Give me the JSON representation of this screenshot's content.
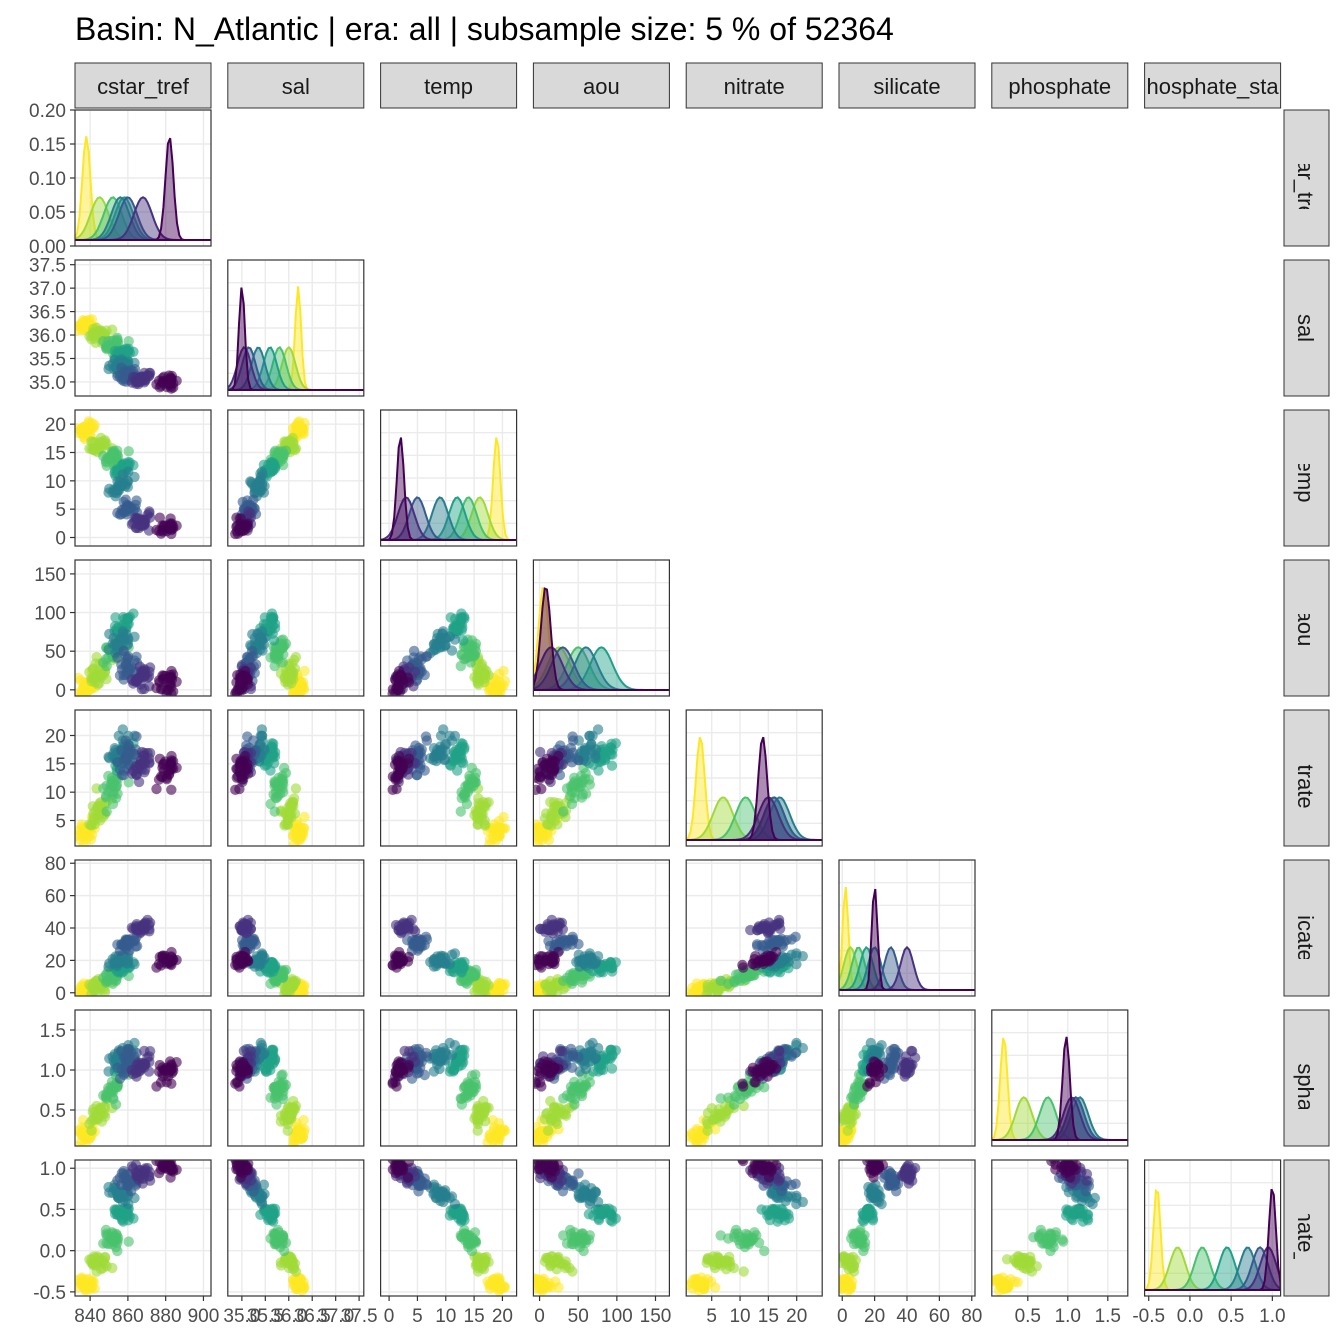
{
  "chart_data": {
    "type": "scatter",
    "title": "Basin: N_Atlantic | era: all | subsample size: 5 % of 52364",
    "variables": [
      "cstar_tref",
      "sal",
      "temp",
      "aou",
      "nitrate",
      "silicate",
      "phosphate",
      "phosphate_star"
    ],
    "strip_labels": [
      "cstar_tref",
      "sal",
      "temp",
      "aou",
      "nitrate",
      "silicate",
      "phosphate",
      "hosphate_sta"
    ],
    "row_strip_labels": [
      "cstar_tref",
      "sal",
      "temp",
      "aou",
      "nitrate",
      "silicate",
      "phosphate",
      "hosphate_sta"
    ],
    "palette": [
      "#fde725",
      "#a0da39",
      "#4ac16d",
      "#1fa187",
      "#277f8e",
      "#365c8d",
      "#46327e",
      "#440154"
    ],
    "axis_ranges": [
      [
        832,
        904
      ],
      [
        34.7,
        37.6
      ],
      [
        -1.5,
        22.5
      ],
      [
        -8,
        168
      ],
      [
        0.5,
        24.5
      ],
      [
        -2,
        82
      ],
      [
        0.05,
        1.75
      ],
      [
        -0.55,
        1.1
      ]
    ],
    "density_ylim": [
      0,
      0.2
    ],
    "x_tick_labels": [
      [
        "840",
        "860",
        "880",
        "900"
      ],
      [
        "35.0",
        "35.5",
        "36.0",
        "36.5",
        "37.0",
        "37.5"
      ],
      [
        "0",
        "5",
        "10",
        "15",
        "20"
      ],
      [
        "0",
        "50",
        "100",
        "150"
      ],
      [
        "5",
        "10",
        "15",
        "20"
      ],
      [
        "0",
        "20",
        "40",
        "60",
        "80"
      ],
      [
        "0.5",
        "1.0",
        "1.5"
      ],
      [
        "-0.5",
        "0.0",
        "0.5",
        "1.0"
      ]
    ],
    "x_tick_values": [
      [
        840,
        860,
        880,
        900
      ],
      [
        35.0,
        35.5,
        36.0,
        36.5,
        37.0,
        37.5
      ],
      [
        0,
        5,
        10,
        15,
        20
      ],
      [
        0,
        50,
        100,
        150
      ],
      [
        5,
        10,
        15,
        20
      ],
      [
        0,
        20,
        40,
        60,
        80
      ],
      [
        0.5,
        1.0,
        1.5
      ],
      [
        -0.5,
        0.0,
        0.5,
        1.0
      ]
    ],
    "y_tick_labels": [
      [
        "0.00",
        "0.05",
        "0.10",
        "0.15",
        "0.20"
      ],
      [
        "35.0",
        "35.5",
        "36.0",
        "36.5",
        "37.0",
        "37.5"
      ],
      [
        "0",
        "5",
        "10",
        "15",
        "20"
      ],
      [
        "0",
        "50",
        "100",
        "150"
      ],
      [
        "5",
        "10",
        "15",
        "20"
      ],
      [
        "0",
        "20",
        "40",
        "60",
        "80"
      ],
      [
        "0.5",
        "1.0",
        "1.5"
      ],
      [
        "-0.5",
        "0.0",
        "0.5",
        "1.0"
      ]
    ],
    "y_tick_values": [
      [
        0,
        0.05,
        0.1,
        0.15,
        0.2
      ],
      [
        35.0,
        35.5,
        36.0,
        36.5,
        37.0,
        37.5
      ],
      [
        0,
        5,
        10,
        15,
        20
      ],
      [
        0,
        50,
        100,
        150
      ],
      [
        5,
        10,
        15,
        20
      ],
      [
        0,
        20,
        40,
        60,
        80
      ],
      [
        0.5,
        1.0,
        1.5
      ],
      [
        -0.5,
        0.0,
        0.5,
        1.0
      ]
    ],
    "color_groups": [
      {
        "cstar_tref": 838,
        "sal": 36.2,
        "temp": 19,
        "aou": 5,
        "nitrate": 3,
        "silicate": 2,
        "phosphate": 0.2,
        "phosphate_star": -0.4
      },
      {
        "cstar_tref": 845,
        "sal": 36.0,
        "temp": 16,
        "aou": 25,
        "nitrate": 7,
        "silicate": 5,
        "phosphate": 0.45,
        "phosphate_star": -0.15
      },
      {
        "cstar_tref": 852,
        "sal": 35.8,
        "temp": 14,
        "aou": 50,
        "nitrate": 11,
        "silicate": 10,
        "phosphate": 0.75,
        "phosphate_star": 0.15
      },
      {
        "cstar_tref": 858,
        "sal": 35.6,
        "temp": 12,
        "aou": 80,
        "nitrate": 16,
        "silicate": 15,
        "phosphate": 1.1,
        "phosphate_star": 0.45
      },
      {
        "cstar_tref": 856,
        "sal": 35.35,
        "temp": 9,
        "aou": 60,
        "nitrate": 17,
        "silicate": 20,
        "phosphate": 1.15,
        "phosphate_star": 0.7
      },
      {
        "cstar_tref": 860,
        "sal": 35.15,
        "temp": 5,
        "aou": 30,
        "nitrate": 16,
        "silicate": 30,
        "phosphate": 1.1,
        "phosphate_star": 0.85
      },
      {
        "cstar_tref": 868,
        "sal": 35.05,
        "temp": 3,
        "aou": 15,
        "nitrate": 15,
        "silicate": 40,
        "phosphate": 1.05,
        "phosphate_star": 0.95
      },
      {
        "cstar_tref": 882,
        "sal": 35.0,
        "temp": 2,
        "aou": 8,
        "nitrate": 14,
        "silicate": 20,
        "phosphate": 0.98,
        "phosphate_star": 1.0
      }
    ]
  }
}
